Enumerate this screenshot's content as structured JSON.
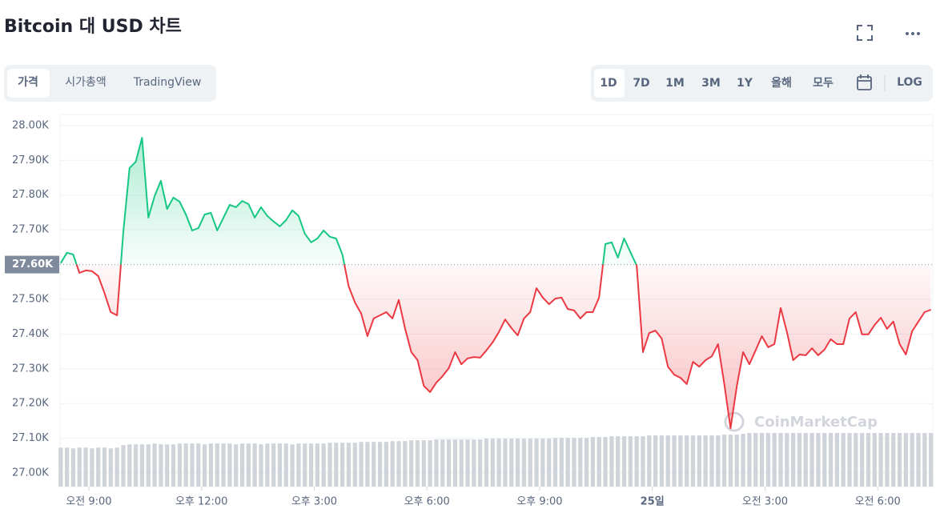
{
  "tabs": [
    "가격",
    "시가총액",
    "TradingView"
  ],
  "ranges": [
    "1D",
    "7D",
    "1M",
    "3M",
    "1Y",
    "올해",
    "모두"
  ],
  "scale_toggle": "LOG",
  "chart_data": {
    "type": "line",
    "title": "Bitcoin 대 USD 차트",
    "watermark": "CoinMarketCap",
    "colors": {
      "up": "#16c784",
      "down": "#ea3943",
      "volume": "#cfd3da"
    },
    "grid": true,
    "xlim": [
      494,
      1888
    ],
    "xticks": [
      {
        "value": 540,
        "label": "오전 9:00"
      },
      {
        "value": 720,
        "label": "오후 12:00"
      },
      {
        "value": 900,
        "label": "오후 3:00"
      },
      {
        "value": 1080,
        "label": "오후 6:00"
      },
      {
        "value": 1260,
        "label": "오후 9:00"
      },
      {
        "value": 1440,
        "label": "25일"
      },
      {
        "value": 1620,
        "label": "오전 3:00"
      },
      {
        "value": 1800,
        "label": "오전 6:00"
      }
    ],
    "ylim": [
      26961,
      28032
    ],
    "yticks": [
      {
        "value": 28000,
        "label": "28.00K"
      },
      {
        "value": 27900,
        "label": "27.90K"
      },
      {
        "value": 27800,
        "label": "27.80K"
      },
      {
        "value": 27700,
        "label": "27.70K"
      },
      {
        "value": 27500,
        "label": "27.50K"
      },
      {
        "value": 27400,
        "label": "27.40K"
      },
      {
        "value": 27300,
        "label": "27.30K"
      },
      {
        "value": 27200,
        "label": "27.20K"
      },
      {
        "value": 27100,
        "label": "27.10K"
      },
      {
        "value": 27000,
        "label": "27.00K"
      }
    ],
    "baseline": {
      "value": 27600,
      "label": "27.60K"
    },
    "x": [
      495,
      505,
      515,
      525,
      535,
      545,
      555,
      565,
      575,
      585,
      595,
      605,
      615,
      625,
      635,
      645,
      655,
      665,
      675,
      685,
      695,
      705,
      715,
      725,
      735,
      745,
      755,
      765,
      775,
      785,
      795,
      805,
      815,
      825,
      835,
      845,
      855,
      865,
      875,
      885,
      895,
      905,
      915,
      925,
      935,
      945,
      955,
      965,
      975,
      985,
      995,
      1005,
      1015,
      1025,
      1035,
      1045,
      1055,
      1065,
      1075,
      1085,
      1095,
      1105,
      1115,
      1125,
      1135,
      1145,
      1155,
      1165,
      1175,
      1185,
      1195,
      1205,
      1215,
      1225,
      1235,
      1245,
      1255,
      1265,
      1275,
      1285,
      1295,
      1305,
      1315,
      1325,
      1335,
      1345,
      1355,
      1365,
      1375,
      1385,
      1395,
      1405,
      1415,
      1425,
      1435,
      1445,
      1455,
      1465,
      1475,
      1485,
      1495,
      1505,
      1515,
      1525,
      1535,
      1545,
      1555,
      1565,
      1575,
      1585,
      1595,
      1605,
      1615,
      1625,
      1635,
      1645,
      1655,
      1665,
      1675,
      1685,
      1695,
      1705,
      1715,
      1725,
      1735,
      1745,
      1755,
      1765,
      1775,
      1785,
      1795,
      1805,
      1815,
      1825,
      1835,
      1845,
      1855,
      1865,
      1875,
      1885
    ],
    "values": [
      27604,
      27634,
      27629,
      27576,
      27583,
      27581,
      27567,
      27518,
      27463,
      27454,
      27694,
      27878,
      27896,
      27965,
      27735,
      27797,
      27841,
      27760,
      27793,
      27781,
      27744,
      27698,
      27705,
      27744,
      27749,
      27698,
      27735,
      27772,
      27765,
      27783,
      27774,
      27735,
      27765,
      27740,
      27724,
      27710,
      27728,
      27756,
      27740,
      27689,
      27664,
      27675,
      27698,
      27680,
      27675,
      27629,
      27537,
      27491,
      27459,
      27394,
      27445,
      27454,
      27463,
      27445,
      27498,
      27417,
      27348,
      27325,
      27251,
      27233,
      27260,
      27279,
      27302,
      27348,
      27313,
      27330,
      27334,
      27332,
      27353,
      27376,
      27406,
      27442,
      27417,
      27396,
      27445,
      27463,
      27532,
      27505,
      27486,
      27502,
      27505,
      27472,
      27468,
      27445,
      27463,
      27463,
      27505,
      27659,
      27664,
      27620,
      27675,
      27636,
      27597,
      27348,
      27403,
      27410,
      27387,
      27306,
      27283,
      27274,
      27256,
      27320,
      27306,
      27325,
      27336,
      27371,
      27256,
      27129,
      27251,
      27348,
      27313,
      27353,
      27394,
      27362,
      27371,
      27475,
      27406,
      27325,
      27341,
      27339,
      27359,
      27339,
      27355,
      27385,
      27371,
      27371,
      27445,
      27463,
      27399,
      27399,
      27426,
      27447,
      27415,
      27436,
      27371,
      27341,
      27408,
      27436,
      27463,
      27470
    ],
    "volume": [
      48,
      48,
      47,
      48,
      48,
      47,
      48,
      48,
      47,
      48,
      51,
      52,
      52,
      52,
      52,
      53,
      52,
      52,
      52,
      53,
      53,
      53,
      53,
      52,
      53,
      53,
      53,
      53,
      52,
      53,
      53,
      53,
      52,
      53,
      53,
      53,
      53,
      52,
      53,
      53,
      53,
      53,
      53,
      54,
      54,
      54,
      54,
      54,
      55,
      55,
      55,
      55,
      55,
      56,
      56,
      56,
      57,
      57,
      57,
      57,
      58,
      58,
      58,
      58,
      58,
      58,
      58,
      58,
      59,
      59,
      59,
      59,
      59,
      59,
      59,
      59,
      59,
      59,
      59,
      60,
      60,
      60,
      60,
      60,
      60,
      61,
      61,
      61,
      62,
      62,
      62,
      62,
      62,
      62,
      63,
      63,
      63,
      63,
      63,
      63,
      63,
      63,
      63,
      63,
      63,
      63,
      64,
      64,
      64,
      65,
      66,
      66,
      66,
      66,
      66,
      66,
      66,
      66,
      66,
      66,
      66,
      66,
      66,
      66,
      66,
      66,
      66,
      66,
      66,
      66,
      66,
      66,
      66,
      66,
      66,
      66,
      66,
      66,
      66,
      66
    ]
  }
}
